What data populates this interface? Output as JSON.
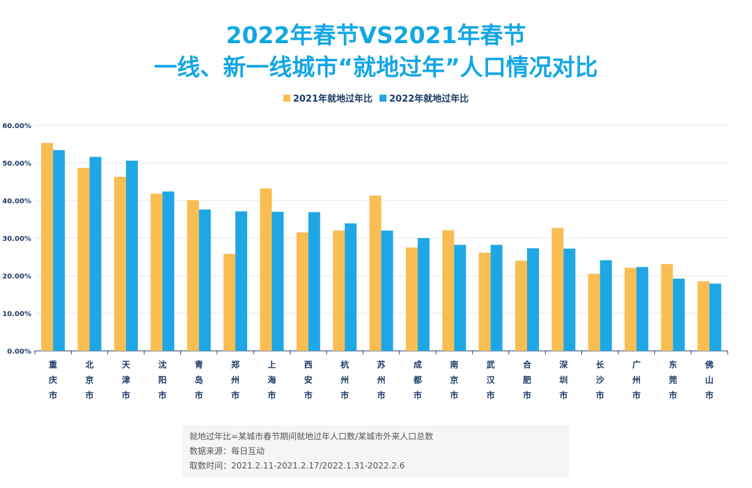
{
  "colors": {
    "series_2021": "#f9bd52",
    "series_2022": "#1ea7e4",
    "axis_text": "#1f3b66"
  },
  "chart_data": {
    "type": "bar",
    "title": "2022年春节VS2021年春节",
    "subtitle": "一线、新一线城市“就地过年”人口情况对比",
    "categories": [
      "重庆市",
      "北京市",
      "天津市",
      "沈阳市",
      "青岛市",
      "郑州市",
      "上海市",
      "西安市",
      "杭州市",
      "苏州市",
      "成都市",
      "南京市",
      "武汉市",
      "合肥市",
      "深圳市",
      "长沙市",
      "广州市",
      "东莞市",
      "佛山市"
    ],
    "series": [
      {
        "name": "2021年就地过年比",
        "values": [
          55.3,
          48.7,
          46.3,
          41.8,
          40.1,
          25.8,
          43.2,
          31.5,
          32.0,
          41.3,
          27.5,
          32.1,
          26.1,
          24.0,
          32.7,
          20.5,
          22.1,
          23.1,
          18.5
        ]
      },
      {
        "name": "2022年就地过年比",
        "values": [
          53.4,
          51.6,
          50.6,
          42.4,
          37.6,
          37.1,
          37.0,
          36.9,
          33.9,
          32.0,
          30.0,
          28.2,
          28.2,
          27.3,
          27.2,
          24.1,
          22.3,
          19.2,
          17.9
        ]
      }
    ],
    "ylim": [
      0,
      60
    ],
    "yticks": [
      "0.00%",
      "10.00%",
      "20.00%",
      "30.00%",
      "40.00%",
      "50.00%",
      "60.00%"
    ],
    "legend": "top-center",
    "grid": true
  },
  "notes": [
    "就地过年比=某城市春节期间就地过年人口数/某城市外来人口总数",
    "数据来源：每日互动",
    "取数时间：2021.2.11-2021.2.17/2022.1.31-2022.2.6"
  ]
}
